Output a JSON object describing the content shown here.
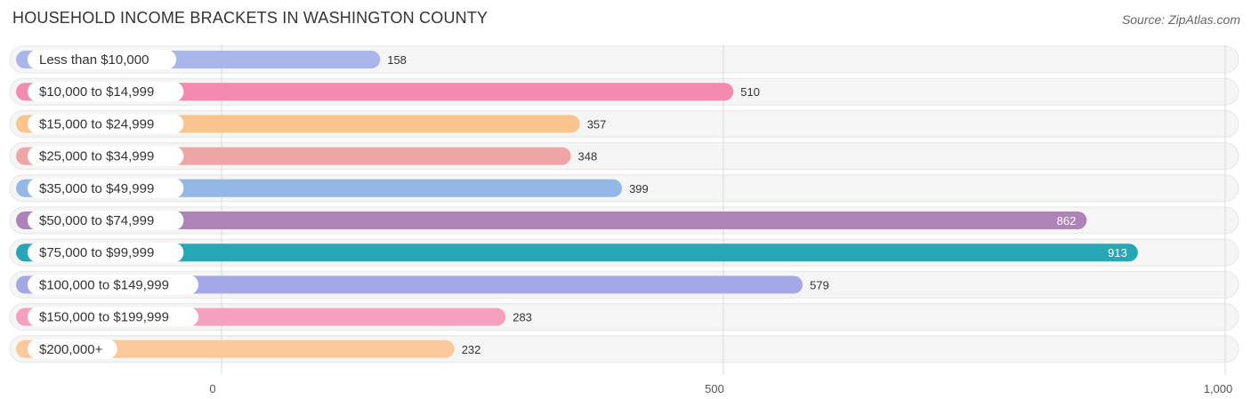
{
  "header": {
    "title": "HOUSEHOLD INCOME BRACKETS IN WASHINGTON COUNTY",
    "source": "Source: ZipAtlas.com"
  },
  "chart_data": {
    "type": "bar",
    "orientation": "horizontal",
    "title": "HOUSEHOLD INCOME BRACKETS IN WASHINGTON COUNTY",
    "categories": [
      "Less than $10,000",
      "$10,000 to $14,999",
      "$15,000 to $24,999",
      "$25,000 to $34,999",
      "$35,000 to $49,999",
      "$50,000 to $74,999",
      "$75,000 to $99,999",
      "$100,000 to $149,999",
      "$150,000 to $199,999",
      "$200,000+"
    ],
    "values": [
      158,
      510,
      357,
      348,
      399,
      862,
      913,
      579,
      283,
      232
    ],
    "value_labels": [
      "158",
      "510",
      "357",
      "348",
      "399",
      "862",
      "913",
      "579",
      "283",
      "232"
    ],
    "colors": [
      "#aab6ea",
      "#f48aaf",
      "#f9c48e",
      "#eea6a4",
      "#93b8e6",
      "#ae83b7",
      "#28a6b5",
      "#a4a9e6",
      "#f5a0bf",
      "#f9c99b"
    ],
    "xlim": [
      0,
      1000
    ],
    "xticks": [
      0,
      500,
      1000
    ],
    "xtick_labels": [
      "0",
      "500",
      "1,000"
    ],
    "grid": true
  }
}
